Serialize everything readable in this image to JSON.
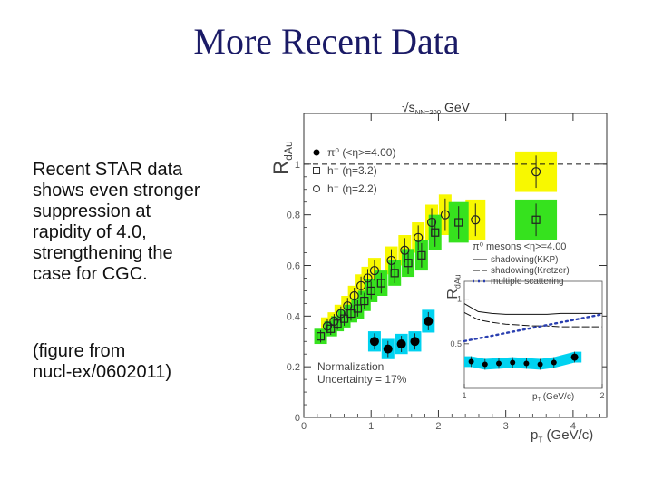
{
  "slide": {
    "title": "More Recent Data",
    "para1": "Recent STAR data\nshows even stronger\nsuppression at\nrapidity of 4.0,\nstrengthening the\ncase for CGC.",
    "para2": "(figure from\nnucl-ex/0602011)"
  },
  "chart_data": [
    {
      "type": "scatter",
      "title": "√s_NN=200 GeV",
      "ylabel": "R_dAu",
      "xlabel": "p_T (GeV/c)",
      "xlim": [
        0,
        4.5
      ],
      "ylim": [
        0,
        1.2
      ],
      "x_ticks": [
        "0",
        "1",
        "2",
        "3",
        "4"
      ],
      "y_ticks": [
        "0",
        "0.2",
        "0.4",
        "0.6",
        "0.8",
        "1"
      ],
      "reference_line": 1.0,
      "colors": {
        "eta4": "#00d2f0",
        "eta32": "#36e21e",
        "eta22": "#f8f800"
      },
      "legend": [
        {
          "label": "π⁰ (<η>=4.00)",
          "marker": "filled-circle"
        },
        {
          "label": "h⁻ (η=3.2)",
          "marker": "open-square"
        },
        {
          "label": "h⁻ (η=2.2)",
          "marker": "open-circle"
        }
      ],
      "annotation": "Normalization\nUncertainty = 17%",
      "series": [
        {
          "name": "π⁰ (<η>=4.00)",
          "marker": "filled-circle",
          "x": [
            1.05,
            1.25,
            1.45,
            1.65,
            1.85
          ],
          "y": [
            0.3,
            0.27,
            0.29,
            0.3,
            0.38
          ],
          "band_half_width": [
            0.04,
            0.04,
            0.04,
            0.04,
            0.045
          ]
        },
        {
          "name": "h⁻ (η=3.2)",
          "marker": "open-square",
          "x": [
            0.25,
            0.4,
            0.5,
            0.6,
            0.7,
            0.8,
            0.9,
            1.0,
            1.15,
            1.35,
            1.55,
            1.75,
            1.95,
            2.3,
            3.45
          ],
          "y": [
            0.32,
            0.35,
            0.37,
            0.39,
            0.41,
            0.43,
            0.46,
            0.5,
            0.53,
            0.57,
            0.61,
            0.64,
            0.73,
            0.77,
            0.78
          ],
          "band_half_width": [
            0.03,
            0.03,
            0.03,
            0.035,
            0.035,
            0.04,
            0.04,
            0.045,
            0.05,
            0.05,
            0.055,
            0.06,
            0.07,
            0.08,
            0.08
          ]
        },
        {
          "name": "h⁻ (η=2.2)",
          "marker": "open-circle",
          "x": [
            0.35,
            0.45,
            0.55,
            0.65,
            0.75,
            0.85,
            0.95,
            1.05,
            1.3,
            1.5,
            1.7,
            1.9,
            2.1,
            2.55,
            3.45
          ],
          "y": [
            0.36,
            0.38,
            0.41,
            0.44,
            0.48,
            0.52,
            0.55,
            0.58,
            0.62,
            0.66,
            0.71,
            0.77,
            0.8,
            0.78,
            0.97
          ],
          "band_half_width": [
            0.035,
            0.035,
            0.035,
            0.04,
            0.04,
            0.045,
            0.045,
            0.05,
            0.055,
            0.06,
            0.06,
            0.07,
            0.08,
            0.08,
            0.08
          ]
        }
      ]
    },
    {
      "type": "scatter",
      "title": "π⁰ mesons <η>=4.00",
      "ylabel": "R_dAu",
      "xlabel": "p_T (GeV/c)",
      "xlim": [
        1,
        2
      ],
      "ylim": [
        0,
        1.2
      ],
      "x_ticks": [
        "1",
        "2"
      ],
      "y_ticks": [
        "0.5",
        "1"
      ],
      "legend": [
        {
          "label": "shadowing(KKP)",
          "style": "solid"
        },
        {
          "label": "shadowing(Kretzer)",
          "style": "dashed"
        },
        {
          "label": "multiple scattering",
          "style": "dotted"
        }
      ],
      "series": [
        {
          "name": "π⁰ mesons <η>=4.00",
          "marker": "filled-circle",
          "x": [
            1.05,
            1.15,
            1.25,
            1.35,
            1.45,
            1.55,
            1.65,
            1.8
          ],
          "y": [
            0.3,
            0.27,
            0.28,
            0.29,
            0.28,
            0.27,
            0.29,
            0.35
          ],
          "band_half_width": [
            0.06,
            0.06,
            0.06,
            0.06,
            0.06,
            0.06,
            0.06,
            0.06
          ]
        },
        {
          "name": "shadowing(KKP)",
          "style": "solid",
          "x": [
            1.0,
            1.1,
            1.2,
            1.3,
            1.4,
            1.5,
            1.6,
            1.7,
            1.8,
            1.9,
            2.0
          ],
          "y": [
            0.95,
            0.86,
            0.84,
            0.83,
            0.83,
            0.83,
            0.83,
            0.84,
            0.84,
            0.84,
            0.84
          ]
        },
        {
          "name": "shadowing(Kretzer)",
          "style": "dashed",
          "x": [
            1.0,
            1.1,
            1.2,
            1.3,
            1.4,
            1.5,
            1.6,
            1.7,
            1.8,
            1.9,
            2.0
          ],
          "y": [
            0.85,
            0.77,
            0.74,
            0.72,
            0.71,
            0.7,
            0.7,
            0.69,
            0.69,
            0.69,
            0.69
          ]
        },
        {
          "name": "multiple scattering",
          "style": "dotted",
          "x": [
            1.0,
            1.1,
            1.2,
            1.3,
            1.4,
            1.5,
            1.6,
            1.7,
            1.8,
            1.9,
            2.0
          ],
          "y": [
            0.53,
            0.56,
            0.59,
            0.62,
            0.65,
            0.68,
            0.71,
            0.74,
            0.77,
            0.8,
            0.83
          ]
        }
      ]
    }
  ]
}
